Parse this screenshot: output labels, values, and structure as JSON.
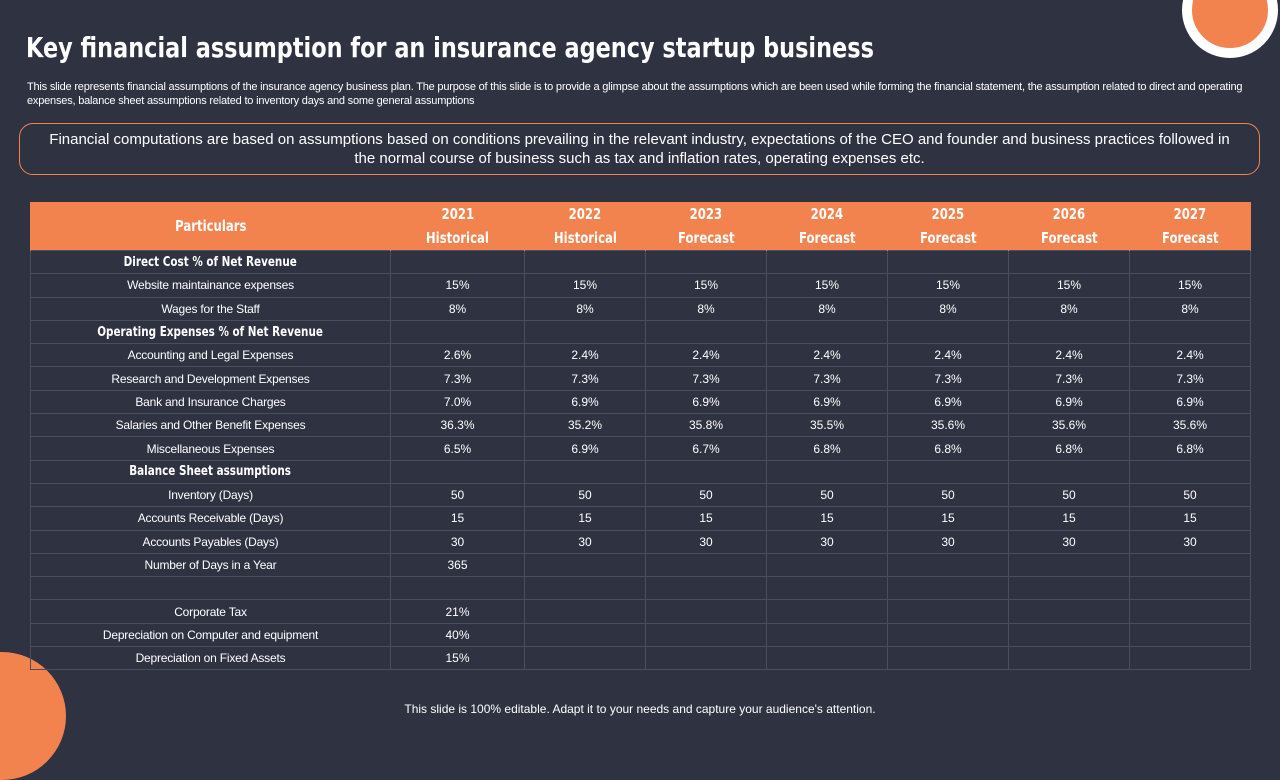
{
  "title": "Key financial assumption for an insurance agency startup business",
  "subtitle": "This slide represents financial assumptions of the insurance agency business plan. The purpose of this slide is to provide a glimpse about the assumptions which are been used while forming the financial statement, the assumption related to direct and operating expenses, balance sheet assumptions related to inventory days and some general assumptions",
  "callout": "Financial computations are based on assumptions based on conditions prevailing in the relevant industry, expectations of the CEO and founder and business practices followed in the normal course of business such as tax and inflation rates, operating expenses etc.",
  "table": {
    "particulars_header": "Particulars",
    "years": [
      {
        "year": "2021",
        "kind": "Historical"
      },
      {
        "year": "2022",
        "kind": "Historical"
      },
      {
        "year": "2023",
        "kind": "Forecast"
      },
      {
        "year": "2024",
        "kind": "Forecast"
      },
      {
        "year": "2025",
        "kind": "Forecast"
      },
      {
        "year": "2026",
        "kind": "Forecast"
      },
      {
        "year": "2027",
        "kind": "Forecast"
      }
    ],
    "rows": [
      {
        "type": "section",
        "label": "Direct Cost % of Net Revenue"
      },
      {
        "type": "data",
        "label": "Website maintainance expenses",
        "values": [
          "15%",
          "15%",
          "15%",
          "15%",
          "15%",
          "15%",
          "15%"
        ]
      },
      {
        "type": "data",
        "label": "Wages for the Staff",
        "values": [
          "8%",
          "8%",
          "8%",
          "8%",
          "8%",
          "8%",
          "8%"
        ]
      },
      {
        "type": "section",
        "label": "Operating  Expenses % of Net Revenue"
      },
      {
        "type": "data",
        "label": "Accounting and Legal Expenses",
        "values": [
          "2.6%",
          "2.4%",
          "2.4%",
          "2.4%",
          "2.4%",
          "2.4%",
          "2.4%"
        ]
      },
      {
        "type": "data",
        "label": "Research and Development Expenses",
        "values": [
          "7.3%",
          "7.3%",
          "7.3%",
          "7.3%",
          "7.3%",
          "7.3%",
          "7.3%"
        ]
      },
      {
        "type": "data",
        "label": "Bank and Insurance Charges",
        "values": [
          "7.0%",
          "6.9%",
          "6.9%",
          "6.9%",
          "6.9%",
          "6.9%",
          "6.9%"
        ]
      },
      {
        "type": "data",
        "label": "Salaries and Other Benefit Expenses",
        "values": [
          "36.3%",
          "35.2%",
          "35.8%",
          "35.5%",
          "35.6%",
          "35.6%",
          "35.6%"
        ]
      },
      {
        "type": "data",
        "label": "Miscellaneous Expenses",
        "values": [
          "6.5%",
          "6.9%",
          "6.7%",
          "6.8%",
          "6.8%",
          "6.8%",
          "6.8%"
        ]
      },
      {
        "type": "section",
        "label": "Balance Sheet assumptions"
      },
      {
        "type": "data",
        "label": "Inventory (Days)",
        "values": [
          "50",
          "50",
          "50",
          "50",
          "50",
          "50",
          "50"
        ]
      },
      {
        "type": "data",
        "label": "Accounts Receivable (Days)",
        "values": [
          "15",
          "15",
          "15",
          "15",
          "15",
          "15",
          "15"
        ]
      },
      {
        "type": "data",
        "label": "Accounts Payables (Days)",
        "values": [
          "30",
          "30",
          "30",
          "30",
          "30",
          "30",
          "30"
        ]
      },
      {
        "type": "data",
        "label": "Number of Days in a Year",
        "values": [
          "365",
          "",
          "",
          "",
          "",
          "",
          ""
        ]
      },
      {
        "type": "data",
        "label": "",
        "values": [
          "",
          "",
          "",
          "",
          "",
          "",
          ""
        ]
      },
      {
        "type": "data",
        "label": "Corporate Tax",
        "values": [
          "21%",
          "",
          "",
          "",
          "",
          "",
          ""
        ]
      },
      {
        "type": "data",
        "label": "Depreciation on Computer and equipment",
        "values": [
          "40%",
          "",
          "",
          "",
          "",
          "",
          ""
        ]
      },
      {
        "type": "data",
        "label": "Depreciation on Fixed Assets",
        "values": [
          "15%",
          "",
          "",
          "",
          "",
          "",
          ""
        ]
      }
    ]
  },
  "footer": "This slide is 100% editable. Adapt it to your needs and capture your audience's attention.",
  "colors": {
    "accent": "#f2834f",
    "background": "#2f3241",
    "grid": "#4a4e5e"
  }
}
